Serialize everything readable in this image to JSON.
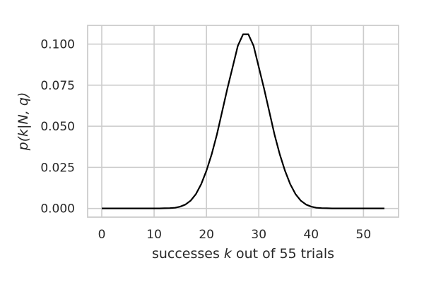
{
  "chart_data": {
    "type": "line",
    "title": "",
    "xlabel": "successes k out of 55 trials",
    "xlabel_parts": {
      "before": "successes ",
      "var": "k",
      "after": " out of 55 trials"
    },
    "ylabel": "p(k|N, q)",
    "ylabel_text": "p(k|N, q)",
    "xlim": [
      -2.7,
      56.7
    ],
    "ylim": [
      -0.0053,
      0.1114
    ],
    "xticks": [
      0,
      10,
      20,
      30,
      40,
      50
    ],
    "xtick_labels": [
      "0",
      "10",
      "20",
      "30",
      "40",
      "50"
    ],
    "yticks": [
      0.0,
      0.025,
      0.05,
      0.075,
      0.1
    ],
    "ytick_labels": [
      "0.000",
      "0.025",
      "0.050",
      "0.075",
      "0.100"
    ],
    "grid": true,
    "series_color": "#000000",
    "grid_color": "#cccccc",
    "series": [
      {
        "x": [
          0,
          1,
          2,
          3,
          4,
          5,
          6,
          7,
          8,
          9,
          10,
          11,
          12,
          13,
          14,
          15,
          16,
          17,
          18,
          19,
          20,
          21,
          22,
          23,
          24,
          25,
          26,
          27,
          28,
          29,
          30,
          31,
          32,
          33,
          34,
          35,
          36,
          37,
          38,
          39,
          40,
          41,
          42,
          43,
          44,
          45,
          46,
          47,
          48,
          49,
          50,
          51,
          52,
          53,
          54
        ],
        "values": [
          0,
          0,
          0,
          0,
          0,
          0,
          0,
          0,
          0,
          0,
          0,
          0,
          0.0001,
          0.0002,
          0.0004,
          0.0011,
          0.0024,
          0.0048,
          0.0088,
          0.0148,
          0.023,
          0.033,
          0.045,
          0.059,
          0.073,
          0.086,
          0.099,
          0.106,
          0.106,
          0.099,
          0.086,
          0.073,
          0.059,
          0.045,
          0.033,
          0.023,
          0.0148,
          0.0088,
          0.0048,
          0.0024,
          0.0011,
          0.0004,
          0.0002,
          0.0001,
          0,
          0,
          0,
          0,
          0,
          0,
          0,
          0,
          0,
          0,
          0
        ]
      }
    ]
  }
}
